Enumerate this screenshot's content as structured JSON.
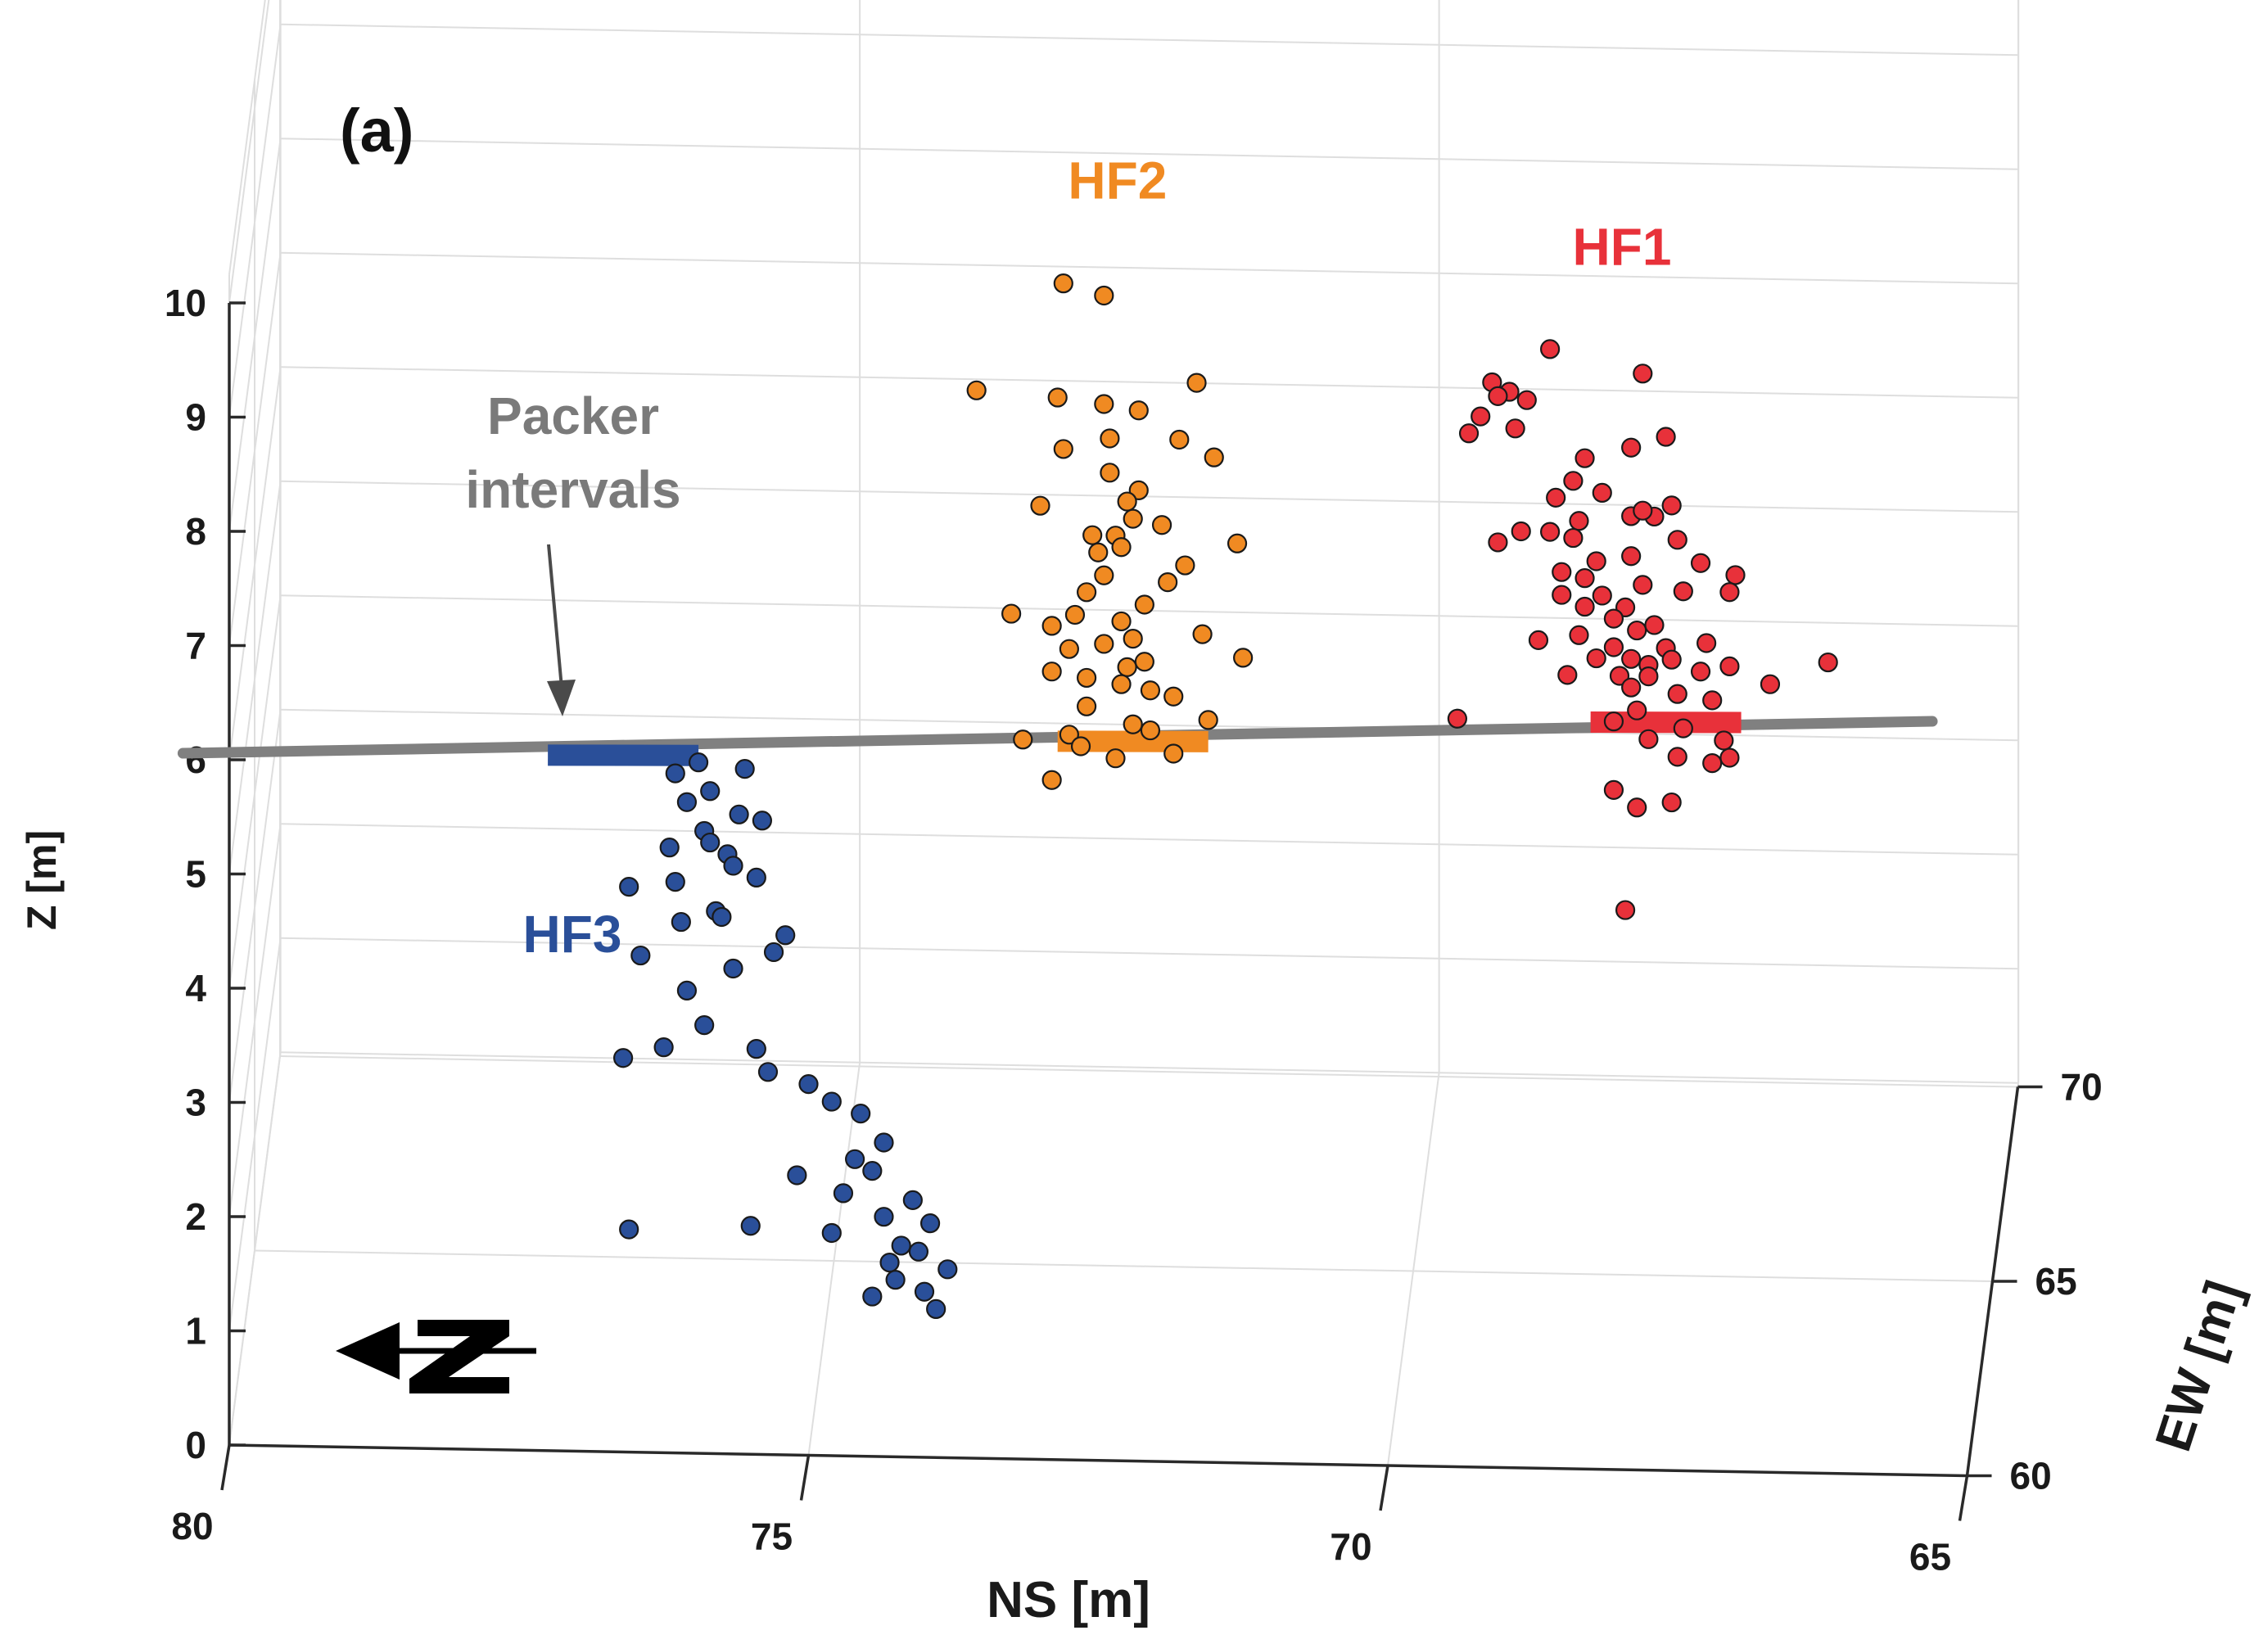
{
  "chart_data": {
    "type": "scatter3d",
    "panel_label": "(a)",
    "xlabel": "NS [m]",
    "ylabel": "EW [m]",
    "zlabel": "Z [m]",
    "x_ticks": [
      "80",
      "75",
      "70",
      "65"
    ],
    "y_ticks": [
      "60",
      "65",
      "70"
    ],
    "z_ticks": [
      "0",
      "1",
      "2",
      "3",
      "4",
      "5",
      "6",
      "7",
      "8",
      "9",
      "10"
    ],
    "xlim": [
      65,
      80
    ],
    "ylim": [
      60,
      70
    ],
    "zlim": [
      0,
      10
    ],
    "annotation": {
      "line1": "Packer",
      "line2": "intervals"
    },
    "borehole_color": "#808080",
    "series": [
      {
        "name": "HF1",
        "color": "#e8313a",
        "packer": {
          "x": 67.6,
          "z": 6.55
        },
        "points": [
          [
            68.6,
            9.8
          ],
          [
            67.8,
            9.6
          ],
          [
            69.1,
            9.5
          ],
          [
            68.95,
            9.42
          ],
          [
            69.05,
            9.38
          ],
          [
            68.8,
            9.35
          ],
          [
            69.2,
            9.2
          ],
          [
            68.9,
            9.1
          ],
          [
            69.3,
            9.05
          ],
          [
            67.6,
            9.05
          ],
          [
            67.9,
            8.95
          ],
          [
            68.3,
            8.85
          ],
          [
            68.4,
            8.65
          ],
          [
            68.15,
            8.55
          ],
          [
            67.55,
            8.45
          ],
          [
            68.55,
            8.5
          ],
          [
            67.7,
            8.35
          ],
          [
            68.35,
            8.3
          ],
          [
            67.9,
            8.35
          ],
          [
            67.8,
            8.4
          ],
          [
            68.6,
            8.2
          ],
          [
            68.85,
            8.2
          ],
          [
            69.05,
            8.1
          ],
          [
            68.4,
            8.15
          ],
          [
            67.5,
            8.15
          ],
          [
            67.3,
            7.95
          ],
          [
            68.2,
            7.95
          ],
          [
            67.9,
            8.0
          ],
          [
            68.5,
            7.85
          ],
          [
            67.0,
            7.85
          ],
          [
            67.05,
            7.7
          ],
          [
            67.8,
            7.75
          ],
          [
            68.3,
            7.8
          ],
          [
            68.5,
            7.65
          ],
          [
            67.45,
            7.7
          ],
          [
            68.15,
            7.65
          ],
          [
            67.95,
            7.55
          ],
          [
            68.3,
            7.55
          ],
          [
            68.05,
            7.45
          ],
          [
            67.7,
            7.4
          ],
          [
            67.85,
            7.35
          ],
          [
            68.35,
            7.3
          ],
          [
            68.7,
            7.25
          ],
          [
            67.25,
            7.25
          ],
          [
            68.05,
            7.2
          ],
          [
            67.6,
            7.2
          ],
          [
            68.2,
            7.1
          ],
          [
            67.55,
            7.1
          ],
          [
            67.9,
            7.1
          ],
          [
            66.2,
            7.1
          ],
          [
            67.05,
            7.05
          ],
          [
            67.75,
            7.05
          ],
          [
            68.0,
            6.95
          ],
          [
            68.45,
            6.95
          ],
          [
            67.75,
            6.95
          ],
          [
            67.3,
            7.0
          ],
          [
            66.7,
            6.9
          ],
          [
            67.9,
            6.85
          ],
          [
            67.5,
            6.8
          ],
          [
            67.2,
            6.75
          ],
          [
            67.85,
            6.65
          ],
          [
            69.4,
            6.55
          ],
          [
            68.05,
            6.55
          ],
          [
            67.45,
            6.5
          ],
          [
            67.1,
            6.4
          ],
          [
            67.75,
            6.4
          ],
          [
            67.05,
            6.25
          ],
          [
            67.5,
            6.25
          ],
          [
            67.2,
            6.2
          ],
          [
            68.05,
            5.95
          ],
          [
            67.55,
            5.85
          ],
          [
            67.85,
            5.8
          ],
          [
            67.95,
            4.9
          ]
        ]
      },
      {
        "name": "HF2",
        "color": "#f08a22",
        "packer": {
          "x": 72.2,
          "z": 6.3
        },
        "points": [
          [
            72.8,
            10.3
          ],
          [
            72.45,
            10.2
          ],
          [
            71.65,
            9.45
          ],
          [
            73.55,
            9.35
          ],
          [
            72.85,
            9.3
          ],
          [
            72.45,
            9.25
          ],
          [
            72.15,
            9.2
          ],
          [
            72.4,
            8.95
          ],
          [
            71.8,
            8.95
          ],
          [
            72.8,
            8.85
          ],
          [
            71.5,
            8.8
          ],
          [
            72.4,
            8.65
          ],
          [
            72.15,
            8.5
          ],
          [
            72.25,
            8.4
          ],
          [
            73.0,
            8.35
          ],
          [
            72.2,
            8.25
          ],
          [
            71.95,
            8.2
          ],
          [
            72.35,
            8.1
          ],
          [
            72.55,
            8.1
          ],
          [
            71.3,
            8.05
          ],
          [
            72.3,
            8.0
          ],
          [
            72.5,
            7.95
          ],
          [
            71.75,
            7.85
          ],
          [
            72.45,
            7.75
          ],
          [
            72.6,
            7.6
          ],
          [
            72.1,
            7.5
          ],
          [
            71.9,
            7.7
          ],
          [
            72.7,
            7.4
          ],
          [
            72.3,
            7.35
          ],
          [
            73.25,
            7.4
          ],
          [
            72.9,
            7.3
          ],
          [
            71.6,
            7.25
          ],
          [
            72.2,
            7.2
          ],
          [
            72.45,
            7.15
          ],
          [
            72.75,
            7.1
          ],
          [
            71.25,
            7.05
          ],
          [
            72.1,
            7.0
          ],
          [
            72.25,
            6.95
          ],
          [
            72.9,
            6.9
          ],
          [
            72.6,
            6.85
          ],
          [
            72.3,
            6.8
          ],
          [
            72.05,
            6.75
          ],
          [
            71.85,
            6.7
          ],
          [
            72.6,
            6.6
          ],
          [
            71.55,
            6.5
          ],
          [
            72.2,
            6.45
          ],
          [
            72.05,
            6.4
          ],
          [
            72.75,
            6.35
          ],
          [
            73.15,
            6.3
          ],
          [
            72.65,
            6.25
          ],
          [
            71.85,
            6.2
          ],
          [
            72.35,
            6.15
          ],
          [
            72.9,
            5.95
          ]
        ]
      },
      {
        "name": "HF3",
        "color": "#2a4f99",
        "packer": {
          "x": 76.6,
          "z": 6.1
        },
        "points": [
          [
            75.95,
            6.05
          ],
          [
            75.55,
            6.0
          ],
          [
            76.15,
            5.95
          ],
          [
            75.85,
            5.8
          ],
          [
            76.05,
            5.7
          ],
          [
            75.6,
            5.6
          ],
          [
            75.4,
            5.55
          ],
          [
            75.9,
            5.45
          ],
          [
            75.85,
            5.35
          ],
          [
            76.2,
            5.3
          ],
          [
            75.7,
            5.25
          ],
          [
            75.65,
            5.15
          ],
          [
            75.45,
            5.05
          ],
          [
            76.15,
            5.0
          ],
          [
            76.55,
            4.95
          ],
          [
            75.8,
            4.75
          ],
          [
            75.75,
            4.7
          ],
          [
            76.1,
            4.65
          ],
          [
            75.2,
            4.55
          ],
          [
            75.3,
            4.4
          ],
          [
            76.45,
            4.35
          ],
          [
            75.65,
            4.25
          ],
          [
            76.05,
            4.05
          ],
          [
            75.9,
            3.75
          ],
          [
            75.45,
            3.55
          ],
          [
            76.25,
            3.55
          ],
          [
            76.6,
            3.45
          ],
          [
            75.35,
            3.35
          ],
          [
            75.0,
            3.25
          ],
          [
            74.8,
            3.1
          ],
          [
            74.55,
            3.0
          ],
          [
            74.35,
            2.75
          ],
          [
            74.6,
            2.6
          ],
          [
            74.45,
            2.5
          ],
          [
            75.1,
            2.45
          ],
          [
            74.7,
            2.3
          ],
          [
            74.1,
            2.25
          ],
          [
            74.35,
            2.1
          ],
          [
            73.95,
            2.05
          ],
          [
            74.8,
            1.95
          ],
          [
            74.2,
            1.85
          ],
          [
            76.55,
            1.95
          ],
          [
            75.5,
            2.0
          ],
          [
            74.05,
            1.8
          ],
          [
            74.3,
            1.7
          ],
          [
            73.8,
            1.65
          ],
          [
            74.25,
            1.55
          ],
          [
            74.0,
            1.45
          ],
          [
            74.45,
            1.4
          ],
          [
            73.9,
            1.3
          ]
        ]
      }
    ]
  }
}
